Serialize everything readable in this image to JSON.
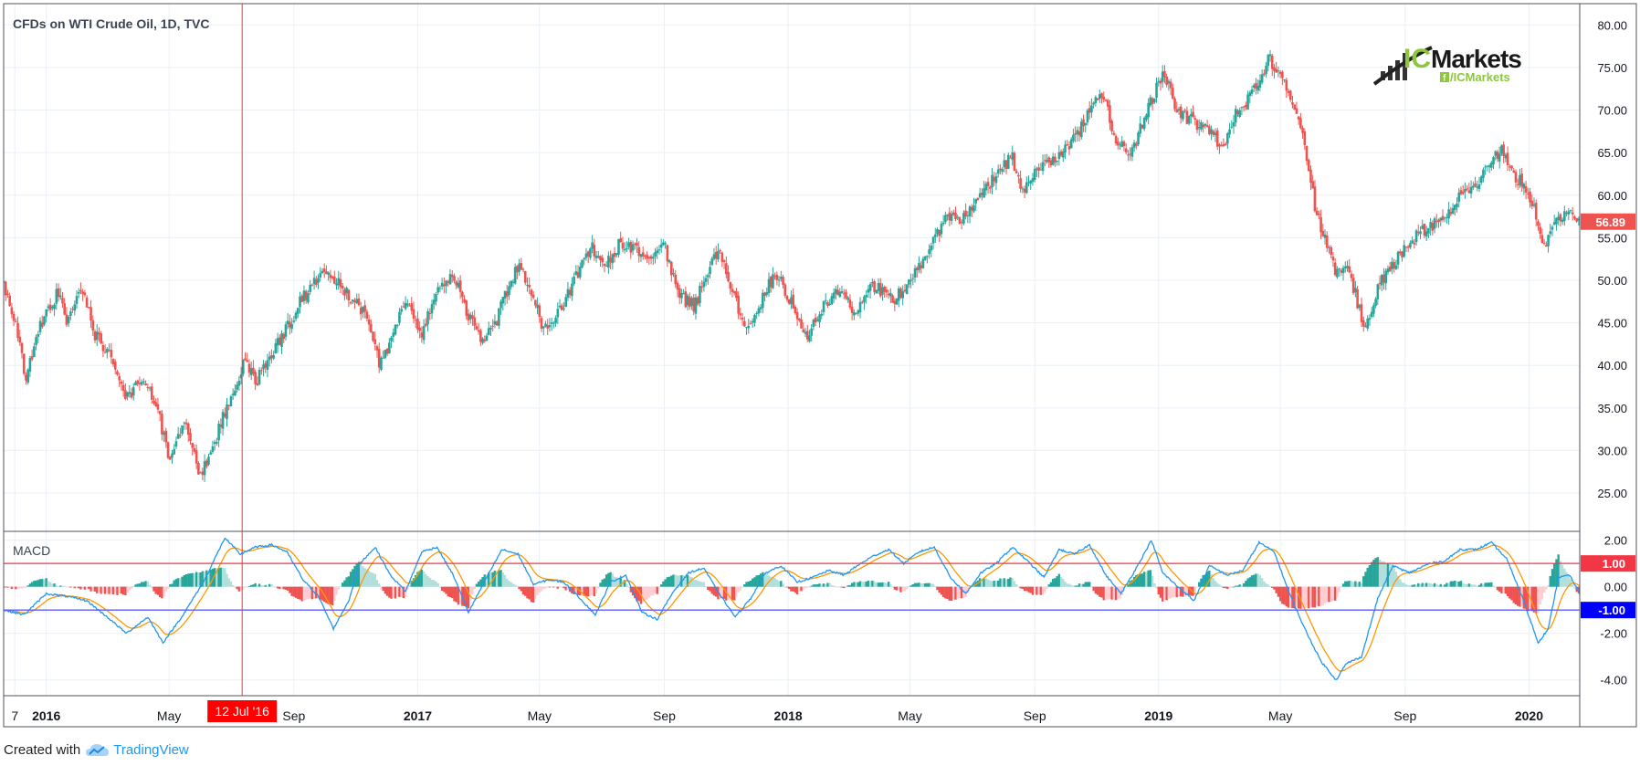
{
  "chart_data": {
    "type": "candlestick",
    "title": "CFDs on WTI Crude Oil, 1D, TVC",
    "last_price_label": "56.89",
    "colors": {
      "up": "#26a69a",
      "down": "#ef5350",
      "grid": "#eaf0f6",
      "macd_line": "#2196f3",
      "signal_line": "#ff9800",
      "upper_level": "#f23645",
      "lower_level": "#5b5bff",
      "crosshair": "#e53935",
      "marker_bg": "#ff0000",
      "lower_label_bg": "#0000ff"
    },
    "price_axis": {
      "ylim": [
        20.5,
        82.5
      ],
      "ticks": [
        "25.00",
        "30.00",
        "35.00",
        "40.00",
        "45.00",
        "50.00",
        "55.00",
        "60.00",
        "65.00",
        "70.00",
        "75.00",
        "80.00"
      ]
    },
    "macd_axis": {
      "ylim": [
        -4.6,
        2.3
      ],
      "ticks": [
        "-4.00",
        "-2.00",
        "0.00",
        "2.00"
      ]
    },
    "x_range": [
      "2015-11-20",
      "2020-02-20"
    ],
    "x_ticks": [
      {
        "date": "2015-12-01",
        "label": "7"
      },
      {
        "date": "2016-01-01",
        "label": "2016"
      },
      {
        "date": "2016-05-01",
        "label": "May"
      },
      {
        "date": "2016-09-01",
        "label": "Sep"
      },
      {
        "date": "2017-01-01",
        "label": "2017"
      },
      {
        "date": "2017-05-01",
        "label": "May"
      },
      {
        "date": "2017-09-01",
        "label": "Sep"
      },
      {
        "date": "2018-01-01",
        "label": "2018"
      },
      {
        "date": "2018-05-01",
        "label": "May"
      },
      {
        "date": "2018-09-01",
        "label": "Sep"
      },
      {
        "date": "2019-01-01",
        "label": "2019"
      },
      {
        "date": "2019-05-01",
        "label": "May"
      },
      {
        "date": "2019-09-01",
        "label": "Sep"
      },
      {
        "date": "2020-01-01",
        "label": "2020"
      }
    ],
    "crosshair": {
      "date": "2016-07-12",
      "label": "12 Jul '16"
    },
    "close_path": [
      [
        "2015-11-20",
        49.5
      ],
      [
        "2015-12-01",
        45.0
      ],
      [
        "2015-12-12",
        38.5
      ],
      [
        "2015-12-25",
        44.5
      ],
      [
        "2016-01-12",
        48.5
      ],
      [
        "2016-01-22",
        45.0
      ],
      [
        "2016-02-05",
        49.0
      ],
      [
        "2016-02-18",
        43.5
      ],
      [
        "2016-03-05",
        41.0
      ],
      [
        "2016-03-20",
        36.0
      ],
      [
        "2016-04-05",
        38.5
      ],
      [
        "2016-04-20",
        34.5
      ],
      [
        "2016-05-02",
        29.0
      ],
      [
        "2016-05-18",
        33.5
      ],
      [
        "2016-06-01",
        27.0
      ],
      [
        "2016-06-12",
        30.0
      ],
      [
        "2016-06-28",
        35.5
      ],
      [
        "2016-07-15",
        40.5
      ],
      [
        "2016-07-25",
        38.0
      ],
      [
        "2016-08-10",
        41.5
      ],
      [
        "2016-08-25",
        44.5
      ],
      [
        "2016-09-10",
        48.0
      ],
      [
        "2016-10-01",
        51.0
      ],
      [
        "2016-10-15",
        49.5
      ],
      [
        "2016-11-05",
        47.0
      ],
      [
        "2016-11-15",
        45.0
      ],
      [
        "2016-11-25",
        40.0
      ],
      [
        "2016-12-10",
        44.5
      ],
      [
        "2016-12-20",
        48.0
      ],
      [
        "2017-01-05",
        44.0
      ],
      [
        "2017-01-20",
        48.5
      ],
      [
        "2017-02-05",
        50.5
      ],
      [
        "2017-02-20",
        46.0
      ],
      [
        "2017-03-05",
        42.5
      ],
      [
        "2017-03-20",
        45.5
      ],
      [
        "2017-04-10",
        52.0
      ],
      [
        "2017-04-25",
        48.0
      ],
      [
        "2017-05-05",
        44.0
      ],
      [
        "2017-05-20",
        46.0
      ],
      [
        "2017-06-05",
        50.0
      ],
      [
        "2017-06-20",
        54.0
      ],
      [
        "2017-07-05",
        52.0
      ],
      [
        "2017-07-20",
        54.5
      ],
      [
        "2017-08-15",
        53.0
      ],
      [
        "2017-09-01",
        54.0
      ],
      [
        "2017-09-15",
        48.0
      ],
      [
        "2017-10-01",
        47.0
      ],
      [
        "2017-10-15",
        51.5
      ],
      [
        "2017-10-25",
        53.5
      ],
      [
        "2017-11-10",
        47.5
      ],
      [
        "2017-11-20",
        44.5
      ],
      [
        "2017-12-05",
        47.5
      ],
      [
        "2017-12-20",
        51.0
      ],
      [
        "2018-01-05",
        47.0
      ],
      [
        "2018-01-20",
        43.5
      ],
      [
        "2018-02-01",
        46.5
      ],
      [
        "2018-02-20",
        48.5
      ],
      [
        "2018-03-10",
        46.0
      ],
      [
        "2018-03-25",
        49.5
      ],
      [
        "2018-04-15",
        47.5
      ],
      [
        "2018-05-05",
        51.0
      ],
      [
        "2018-05-20",
        53.5
      ],
      [
        "2018-06-05",
        57.5
      ],
      [
        "2018-06-20",
        56.5
      ],
      [
        "2018-07-01",
        59.0
      ],
      [
        "2018-07-20",
        61.5
      ],
      [
        "2018-08-10",
        64.5
      ],
      [
        "2018-08-20",
        60.0
      ],
      [
        "2018-09-01",
        63.0
      ],
      [
        "2018-09-20",
        64.0
      ],
      [
        "2018-10-10",
        66.5
      ],
      [
        "2018-10-25",
        70.0
      ],
      [
        "2018-11-05",
        72.5
      ],
      [
        "2018-11-20",
        66.5
      ],
      [
        "2018-12-05",
        65.0
      ],
      [
        "2018-12-20",
        69.5
      ],
      [
        "2019-01-05",
        74.5
      ],
      [
        "2019-01-20",
        70.0
      ],
      [
        "2019-02-05",
        68.5
      ],
      [
        "2019-02-20",
        67.5
      ],
      [
        "2019-03-05",
        65.5
      ],
      [
        "2019-03-20",
        70.0
      ],
      [
        "2019-04-01",
        71.5
      ],
      [
        "2019-04-10",
        73.0
      ],
      [
        "2019-04-20",
        76.0
      ],
      [
        "2019-05-01",
        74.0
      ],
      [
        "2019-05-15",
        70.0
      ],
      [
        "2019-05-25",
        66.0
      ],
      [
        "2019-06-05",
        58.0
      ],
      [
        "2019-06-15",
        54.5
      ],
      [
        "2019-06-25",
        50.5
      ],
      [
        "2019-07-05",
        52.0
      ],
      [
        "2019-07-15",
        48.0
      ],
      [
        "2019-07-23",
        43.5
      ],
      [
        "2019-08-05",
        49.5
      ],
      [
        "2019-08-20",
        52.0
      ],
      [
        "2019-09-05",
        54.5
      ],
      [
        "2019-09-25",
        56.5
      ],
      [
        "2019-10-10",
        57.0
      ],
      [
        "2019-10-25",
        60.5
      ],
      [
        "2019-11-10",
        61.5
      ],
      [
        "2019-11-25",
        64.0
      ],
      [
        "2019-12-05",
        65.5
      ],
      [
        "2019-12-15",
        62.5
      ],
      [
        "2019-12-25",
        61.5
      ],
      [
        "2020-01-05",
        59.0
      ],
      [
        "2020-01-15",
        54.0
      ],
      [
        "2020-01-25",
        56.5
      ],
      [
        "2020-02-05",
        58.0
      ],
      [
        "2020-02-20",
        57.0
      ]
    ],
    "macd_path": [
      [
        "2015-11-20",
        -1.0
      ],
      [
        "2015-12-10",
        -1.2
      ],
      [
        "2016-01-01",
        -0.3
      ],
      [
        "2016-01-20",
        -0.4
      ],
      [
        "2016-02-10",
        -0.6
      ],
      [
        "2016-03-01",
        -1.3
      ],
      [
        "2016-03-20",
        -2.0
      ],
      [
        "2016-04-10",
        -1.3
      ],
      [
        "2016-04-25",
        -2.4
      ],
      [
        "2016-05-15",
        -1.2
      ],
      [
        "2016-06-05",
        0.3
      ],
      [
        "2016-06-25",
        2.1
      ],
      [
        "2016-07-10",
        1.4
      ],
      [
        "2016-07-25",
        1.7
      ],
      [
        "2016-08-10",
        1.8
      ],
      [
        "2016-08-25",
        1.5
      ],
      [
        "2016-09-10",
        0.3
      ],
      [
        "2016-09-25",
        -0.4
      ],
      [
        "2016-10-10",
        -1.8
      ],
      [
        "2016-10-25",
        -0.6
      ],
      [
        "2016-11-05",
        1.0
      ],
      [
        "2016-11-20",
        1.7
      ],
      [
        "2016-12-05",
        0.5
      ],
      [
        "2016-12-20",
        -0.2
      ],
      [
        "2017-01-05",
        1.5
      ],
      [
        "2017-01-20",
        1.7
      ],
      [
        "2017-02-05",
        0.5
      ],
      [
        "2017-02-20",
        -1.1
      ],
      [
        "2017-03-10",
        0.4
      ],
      [
        "2017-03-25",
        1.6
      ],
      [
        "2017-04-10",
        1.4
      ],
      [
        "2017-04-25",
        0.1
      ],
      [
        "2017-05-10",
        0.3
      ],
      [
        "2017-05-25",
        0.2
      ],
      [
        "2017-06-10",
        -0.5
      ],
      [
        "2017-06-25",
        -1.2
      ],
      [
        "2017-07-10",
        0.2
      ],
      [
        "2017-07-25",
        0.5
      ],
      [
        "2017-08-10",
        -1.1
      ],
      [
        "2017-08-25",
        -1.4
      ],
      [
        "2017-09-10",
        -0.2
      ],
      [
        "2017-09-25",
        0.6
      ],
      [
        "2017-10-10",
        0.8
      ],
      [
        "2017-10-25",
        -0.3
      ],
      [
        "2017-11-10",
        -1.3
      ],
      [
        "2017-11-25",
        -0.5
      ],
      [
        "2017-12-10",
        0.6
      ],
      [
        "2017-12-25",
        0.9
      ],
      [
        "2018-01-10",
        0.2
      ],
      [
        "2018-01-25",
        0.4
      ],
      [
        "2018-02-10",
        0.7
      ],
      [
        "2018-02-25",
        0.5
      ],
      [
        "2018-03-10",
        0.9
      ],
      [
        "2018-03-25",
        1.3
      ],
      [
        "2018-04-10",
        1.6
      ],
      [
        "2018-04-25",
        1.0
      ],
      [
        "2018-05-10",
        1.5
      ],
      [
        "2018-05-25",
        1.7
      ],
      [
        "2018-06-10",
        0.4
      ],
      [
        "2018-06-25",
        -0.3
      ],
      [
        "2018-07-10",
        0.6
      ],
      [
        "2018-07-25",
        1.0
      ],
      [
        "2018-08-10",
        1.7
      ],
      [
        "2018-08-25",
        1.1
      ],
      [
        "2018-09-10",
        0.4
      ],
      [
        "2018-09-25",
        1.6
      ],
      [
        "2018-10-10",
        1.4
      ],
      [
        "2018-10-25",
        1.8
      ],
      [
        "2018-11-10",
        0.5
      ],
      [
        "2018-11-25",
        -0.3
      ],
      [
        "2018-12-10",
        0.8
      ],
      [
        "2018-12-25",
        2.0
      ],
      [
        "2019-01-05",
        0.6
      ],
      [
        "2019-01-20",
        0.0
      ],
      [
        "2019-02-05",
        -0.6
      ],
      [
        "2019-02-20",
        0.9
      ],
      [
        "2019-03-10",
        0.5
      ],
      [
        "2019-03-25",
        0.7
      ],
      [
        "2019-04-10",
        1.9
      ],
      [
        "2019-04-25",
        1.5
      ],
      [
        "2019-05-10",
        -0.3
      ],
      [
        "2019-05-25",
        -1.8
      ],
      [
        "2019-06-10",
        -3.2
      ],
      [
        "2019-06-25",
        -4.0
      ],
      [
        "2019-07-05",
        -3.3
      ],
      [
        "2019-07-20",
        -3.0
      ],
      [
        "2019-08-05",
        -0.5
      ],
      [
        "2019-08-20",
        0.9
      ],
      [
        "2019-09-05",
        0.6
      ],
      [
        "2019-09-25",
        1.0
      ],
      [
        "2019-10-10",
        1.1
      ],
      [
        "2019-10-25",
        1.6
      ],
      [
        "2019-11-10",
        1.6
      ],
      [
        "2019-11-25",
        1.9
      ],
      [
        "2019-12-10",
        1.2
      ],
      [
        "2019-12-25",
        -0.4
      ],
      [
        "2020-01-10",
        -2.4
      ],
      [
        "2020-01-20",
        -1.8
      ],
      [
        "2020-01-30",
        0.4
      ],
      [
        "2020-02-10",
        0.5
      ],
      [
        "2020-02-20",
        -0.3
      ]
    ],
    "macd_levels": [
      {
        "value": 1.0,
        "label": "1.00"
      },
      {
        "value": -1.0,
        "label": "-1.00"
      }
    ]
  },
  "macd_title": "MACD",
  "logo": {
    "brand_prefix": "IC",
    "brand_name": "Markets",
    "handle": "/ICMarkets"
  },
  "footer": {
    "created_with": "Created with",
    "brand": "TradingView"
  }
}
